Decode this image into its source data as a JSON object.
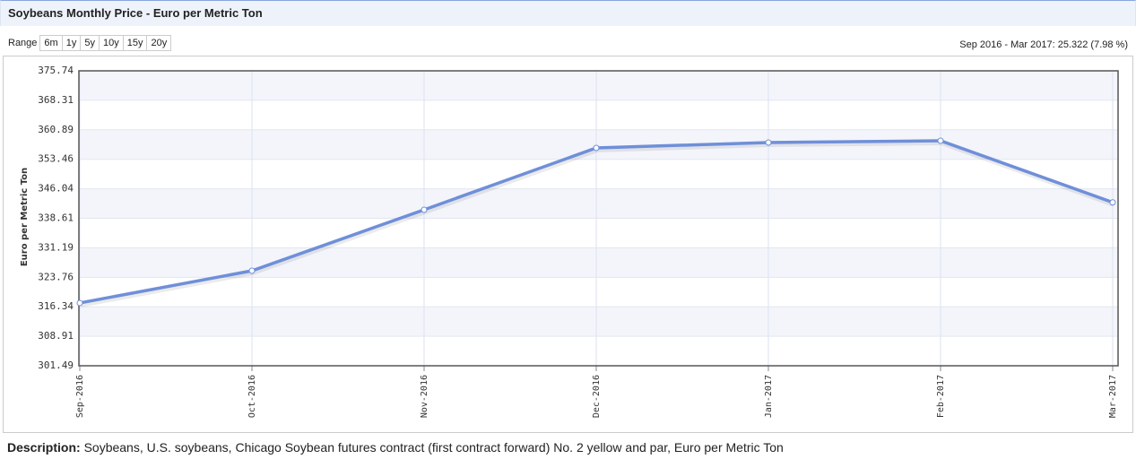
{
  "chart_data": {
    "type": "line",
    "title": "Soybeans Monthly Price - Euro per Metric Ton",
    "y_label": "Euro per Metric Ton",
    "categories": [
      "Sep-2016",
      "Oct-2016",
      "Nov-2016",
      "Dec-2016",
      "Jan-2017",
      "Feb-2017",
      "Mar-2017"
    ],
    "series": [
      {
        "name": "Soybeans",
        "color": "#6f8fd9",
        "values": [
          317.3,
          325.41,
          340.76,
          356.33,
          357.69,
          358.14,
          342.62
        ]
      }
    ],
    "ylim": [
      301.49,
      375.74
    ],
    "yticks": [
      301.49,
      308.91,
      316.34,
      323.76,
      331.19,
      338.61,
      346.04,
      353.46,
      360.89,
      368.31,
      375.74
    ],
    "grid": true
  },
  "range_label": "Range",
  "range_buttons": [
    "6m",
    "1y",
    "5y",
    "10y",
    "15y",
    "20y"
  ],
  "range_summary": "Sep 2016 - Mar 2017: 25.322 (7.98 %)",
  "description": {
    "label": "Description:",
    "text": "Soybeans, U.S. soybeans, Chicago Soybean futures contract (first contract forward) No. 2 yellow and par, Euro per Metric Ton"
  }
}
